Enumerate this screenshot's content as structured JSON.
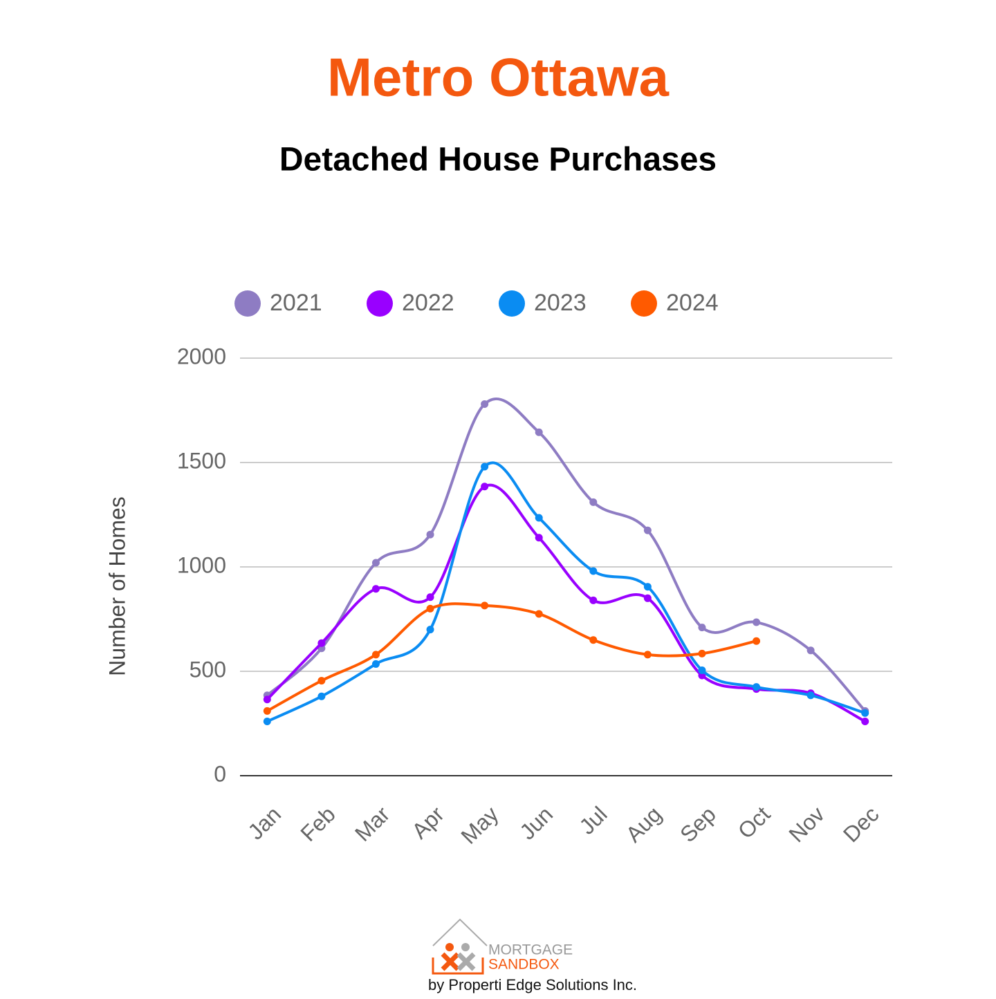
{
  "chart_data": {
    "type": "line",
    "title": "Metro Ottawa",
    "subtitle": "Detached House Purchases",
    "y_label": "Number of Homes",
    "categories": [
      "Jan",
      "Feb",
      "Mar",
      "Apr",
      "May",
      "Jun",
      "Jul",
      "Aug",
      "Sep",
      "Oct",
      "Nov",
      "Dec"
    ],
    "series": [
      {
        "name": "2021",
        "color": "#8e7cc3",
        "values": [
          385,
          610,
          1020,
          1155,
          1780,
          1645,
          1310,
          1175,
          710,
          735,
          600,
          310
        ]
      },
      {
        "name": "2022",
        "color": "#9900ff",
        "values": [
          365,
          635,
          895,
          855,
          1385,
          1140,
          840,
          850,
          480,
          415,
          395,
          260
        ]
      },
      {
        "name": "2023",
        "color": "#0a8cf2",
        "values": [
          260,
          380,
          535,
          700,
          1480,
          1235,
          980,
          905,
          505,
          425,
          385,
          300
        ]
      },
      {
        "name": "2024",
        "color": "#ff5a00",
        "values": [
          310,
          455,
          580,
          800,
          815,
          775,
          650,
          580,
          585,
          645,
          null,
          null
        ]
      }
    ],
    "ylim": [
      0,
      2000
    ],
    "yticks": [
      0,
      500,
      1000,
      1500,
      2000
    ],
    "grid": true,
    "legend": "top"
  },
  "footer": {
    "logo_top": "MORTGAGE",
    "logo_bottom": "SANDBOX",
    "credit": "by Properti Edge Solutions Inc."
  }
}
